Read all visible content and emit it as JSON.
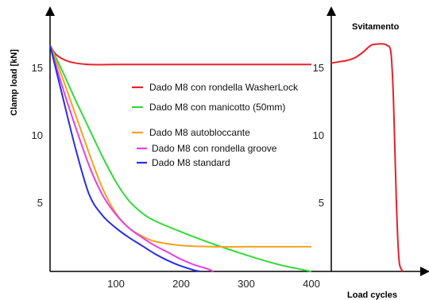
{
  "chart_data": {
    "type": "line",
    "title": "",
    "xlabel": "Load cycles",
    "ylabel": "Clamp load [kN]",
    "xlim": [
      0,
      400
    ],
    "ylim": [
      0,
      17
    ],
    "xticks": [
      "100",
      "200",
      "300",
      "400"
    ],
    "xtick_values": [
      100,
      200,
      300,
      400
    ],
    "yticks": [
      "5",
      "10",
      "15"
    ],
    "ytick_values": [
      5,
      10,
      15
    ],
    "grid": false,
    "legend_position": "center",
    "series": [
      {
        "name": "Dado M8 con rondella WasherLock",
        "color": "#e8202a",
        "x": [
          0,
          10,
          30,
          60,
          100,
          200,
          300,
          400
        ],
        "y": [
          16.5,
          15.8,
          15.3,
          15.1,
          15.1,
          15.1,
          15.1,
          15.1
        ]
      },
      {
        "name": "Dado M8 con manicotto (50mm)",
        "color": "#33d93a",
        "x": [
          0,
          20,
          40,
          60,
          80,
          100,
          120,
          140,
          160,
          200,
          250,
          300,
          350,
          400
        ],
        "y": [
          16.5,
          14.5,
          12.4,
          10.4,
          8.4,
          6.6,
          5.2,
          4.3,
          3.7,
          2.9,
          2.0,
          1.2,
          0.5,
          0.0
        ]
      },
      {
        "name": "Dado M8 autobloccante",
        "color": "#f2a31e",
        "x": [
          0,
          20,
          40,
          60,
          80,
          100,
          120,
          140,
          160,
          200,
          250,
          300,
          350,
          400
        ],
        "y": [
          16.5,
          14.0,
          11.3,
          8.6,
          6.1,
          4.3,
          3.2,
          2.6,
          2.2,
          1.9,
          1.8,
          1.8,
          1.8,
          1.8
        ]
      },
      {
        "name": "Dado M8 con rondella groove",
        "color": "#e83ee4",
        "x": [
          0,
          20,
          40,
          60,
          80,
          100,
          120,
          140,
          160,
          180,
          200,
          220,
          240,
          250
        ],
        "y": [
          16.5,
          13.3,
          10.4,
          7.7,
          5.6,
          4.2,
          3.2,
          2.5,
          1.9,
          1.4,
          0.9,
          0.5,
          0.2,
          0.0
        ]
      },
      {
        "name": "Dado M8 standard",
        "color": "#2a2ee0",
        "x": [
          0,
          20,
          40,
          60,
          80,
          100,
          120,
          140,
          160,
          180,
          200,
          220,
          230
        ],
        "y": [
          16.5,
          12.6,
          8.8,
          5.6,
          4.1,
          3.2,
          2.5,
          1.9,
          1.3,
          0.8,
          0.4,
          0.1,
          0.0
        ]
      }
    ],
    "inset": {
      "title": "Svitamento",
      "yticks": [
        "5",
        "10",
        "15"
      ],
      "ytick_values": [
        5,
        10,
        15
      ],
      "series": {
        "name": "Svitamento",
        "color": "#e8202a",
        "x": [
          0,
          0.1,
          0.2,
          0.3,
          0.4,
          0.5,
          0.6,
          0.65,
          0.7,
          0.75,
          0.78,
          0.8,
          0.82,
          0.84,
          0.86,
          0.9
        ],
        "y": [
          15.2,
          15.3,
          15.4,
          15.6,
          16.0,
          16.5,
          16.6,
          16.6,
          16.5,
          16.0,
          13.0,
          9.0,
          5.0,
          2.0,
          0.5,
          0.0
        ]
      }
    }
  }
}
